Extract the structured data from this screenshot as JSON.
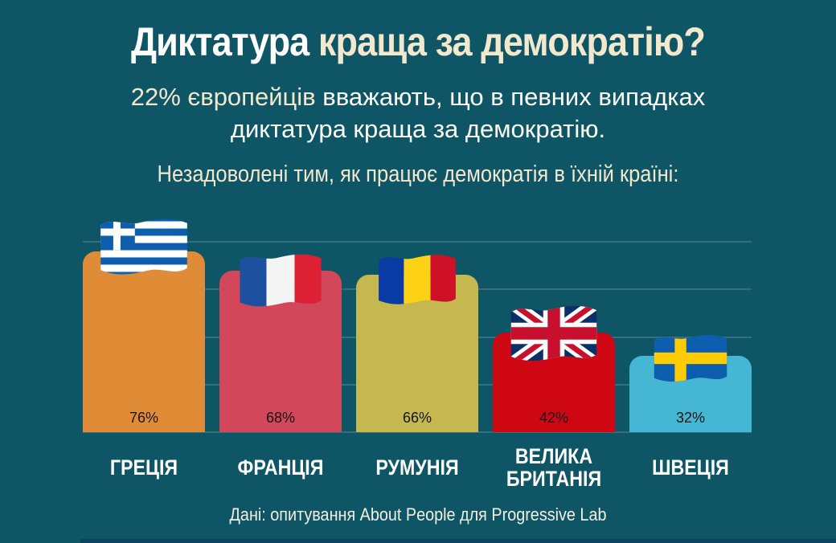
{
  "colors": {
    "background": "#0E5565",
    "accent_cream": "#F2E8CE",
    "grid": "rgba(198,222,222,0.20)",
    "percent_text": "#161616",
    "footer_bar": "#0C4460"
  },
  "title": {
    "part1": "Диктатура",
    "part2": "краща за демократію?"
  },
  "subtitle": {
    "highlight": "22% європейців",
    "line1_rest": "вважають, що в певних випадках",
    "line2": "диктатура краща за демократію."
  },
  "section_heading": "Незадоволені тим, як працює демократія в їхній країні:",
  "source": "Дані: опитування About People для Progressive Lab",
  "chart_data": {
    "type": "bar",
    "title": "Незадоволені тим, як працює демократія в їхній країні",
    "categories": [
      "ГРЕЦІЯ",
      "ФРАНЦІЯ",
      "РУМУНІЯ",
      "ВЕЛИКА\nБРИТАНІЯ",
      "ШВЕЦІЯ"
    ],
    "values": [
      76,
      68,
      66,
      42,
      32
    ],
    "value_labels": [
      "76%",
      "68%",
      "66%",
      "42%",
      "32%"
    ],
    "unit": "%",
    "bar_colors": [
      "#E08B36",
      "#D2475A",
      "#C5B851",
      "#CE0713",
      "#45B6D3"
    ],
    "flag_icons": [
      "greece-flag",
      "france-flag",
      "romania-flag",
      "uk-flag",
      "sweden-flag"
    ],
    "xlabel": "",
    "ylabel": "",
    "ylim": [
      0,
      80
    ],
    "gridline_values": [
      80,
      60,
      40,
      20,
      0
    ],
    "grid": true,
    "legend": false
  }
}
